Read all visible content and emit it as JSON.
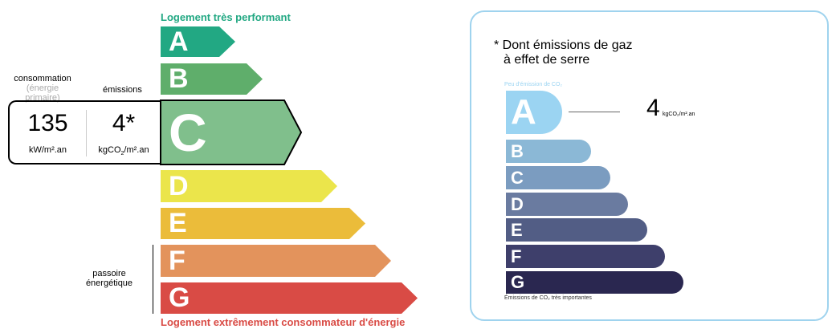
{
  "header_top": "Logement très performant",
  "header_bottom": "Logement extrêmement consommateur d'énergie",
  "consumption": {
    "label": "consommation",
    "sublabel": "(énergie primaire)",
    "value": "135",
    "unit": "kW/m².an"
  },
  "emissions": {
    "label": "émissions",
    "value": "4*",
    "unit_pre": "kgCO",
    "unit_sub": "2",
    "unit_post": "/m².an"
  },
  "passoire": "passoire énergétique",
  "current_class": "C",
  "energy_classes": [
    {
      "letter": "A",
      "color": "#22a883"
    },
    {
      "letter": "B",
      "color": "#5fae6b"
    },
    {
      "letter": "C",
      "color": "#80bf8c"
    },
    {
      "letter": "D",
      "color": "#ebe54b"
    },
    {
      "letter": "E",
      "color": "#ebbc3a"
    },
    {
      "letter": "F",
      "color": "#e3935c"
    },
    {
      "letter": "G",
      "color": "#d94b45"
    }
  ],
  "co2_panel": {
    "title_line1": "* Dont émissions de gaz",
    "title_line2": "à effet de serre",
    "top_label": "Peu d'émission de CO₂",
    "bottom_label": "Émissions de CO₂ très importantes",
    "value": "4",
    "unit": "kgCO₂/m².an",
    "current_class": "A",
    "classes": [
      {
        "letter": "A",
        "color": "#9bd4f2"
      },
      {
        "letter": "B",
        "color": "#8bb8d6"
      },
      {
        "letter": "C",
        "color": "#7b9cc0"
      },
      {
        "letter": "D",
        "color": "#6a7ba0"
      },
      {
        "letter": "E",
        "color": "#525d85"
      },
      {
        "letter": "F",
        "color": "#3e3f6b"
      },
      {
        "letter": "G",
        "color": "#2a2750"
      }
    ]
  }
}
